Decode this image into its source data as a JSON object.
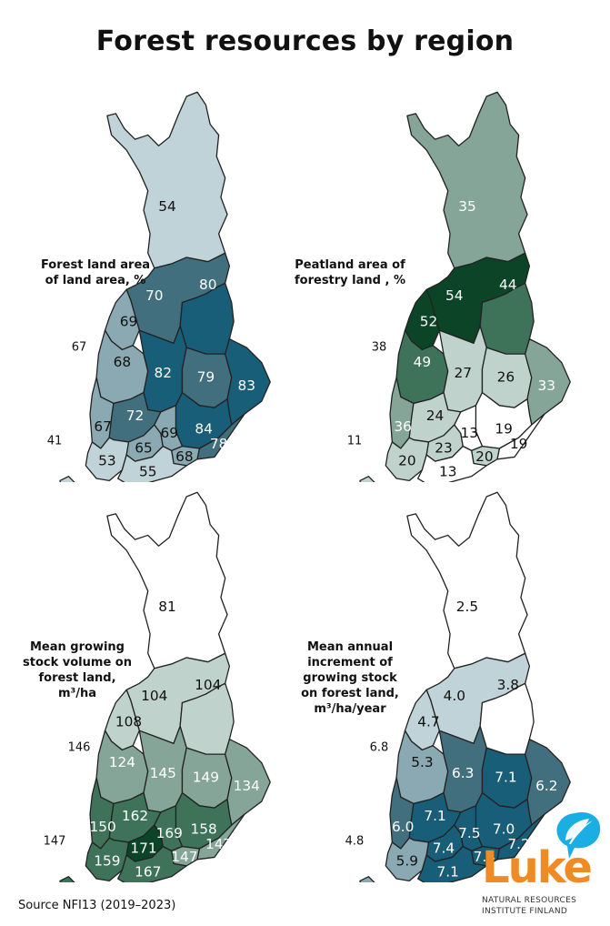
{
  "title": "Forest resources by region",
  "source": "Source NFI13 (2019–2023)",
  "logo": {
    "word": "Luke",
    "line1": "NATURAL RESOURCES",
    "line2": "INSTITUTE FINLAND",
    "leaf_color": "#1aaee2",
    "word_color": "#f08a24"
  },
  "panels": [
    {
      "id": "forest-land",
      "label_lines": [
        "Forest land area",
        "of land area, %"
      ],
      "values": {
        "lapland": "54",
        "north_ostrobothnia": "70",
        "kainuu": "80",
        "central_ostrobothnia": "69",
        "ostrobothnia": "68",
        "central_finland": "82",
        "north_savo": "79",
        "north_karelia": "83",
        "south_ostrobothnia_west": "67",
        "pirkanmaa": "72",
        "south_savo": "84",
        "south_karelia": "78",
        "satakunta_tavastia": "65",
        "paijat_hame": "69",
        "kymenlaakso": "68",
        "southwest": "53",
        "uusimaa": "55"
      },
      "outside": {
        "vaasa_coast": "67",
        "aland": "41"
      },
      "colors": {
        "very_light": "#c0d3d8",
        "light": "#8aa9b3",
        "mid": "#426f7e",
        "dark": "#195e78"
      }
    },
    {
      "id": "peatland",
      "label_lines": [
        "Peatland area of",
        "forestry land , %"
      ],
      "values": {
        "lapland": "35",
        "north_ostrobothnia": "54",
        "kainuu": "44",
        "central_ostrobothnia": "52",
        "ostrobothnia": "49",
        "central_finland": "27",
        "north_savo": "26",
        "north_karelia": "33",
        "south_ostrobothnia_west": "36",
        "pirkanmaa": "24",
        "south_savo": "19",
        "south_karelia": "19",
        "satakunta_tavastia": "23",
        "paijat_hame": "13",
        "kymenlaakso": "20",
        "southwest": "20",
        "uusimaa": "13"
      },
      "outside": {
        "vaasa_coast": "38",
        "aland": "11"
      },
      "colors": {
        "white": "#ffffff",
        "light": "#bfd3cc",
        "mid": "#84a597",
        "dark": "#3e735a",
        "darkest": "#0c4428"
      }
    },
    {
      "id": "growing-stock",
      "label_lines": [
        "Mean growing",
        "stock volume on",
        "forest land,",
        "m³/ha"
      ],
      "values": {
        "lapland": "81",
        "north_ostrobothnia": "104",
        "kainuu": "104",
        "central_ostrobothnia": "108",
        "ostrobothnia": "124",
        "central_finland": "145",
        "north_savo": "149",
        "north_karelia": "134",
        "south_ostrobothnia_west": "150",
        "pirkanmaa": "162",
        "south_savo": "158",
        "south_karelia": "147",
        "satakunta_tavastia": "171",
        "paijat_hame": "169",
        "kymenlaakso": "147",
        "southwest": "159",
        "uusimaa": "167"
      },
      "outside": {
        "vaasa_coast": "146",
        "aland": "147"
      },
      "colors": {
        "white": "#ffffff",
        "light": "#bfd3cc",
        "mid": "#84a597",
        "dark": "#3e735a",
        "darkest": "#0c4428"
      }
    },
    {
      "id": "annual-increment",
      "label_lines": [
        "Mean annual",
        "increment of",
        "growing stock",
        "on forest land,",
        "m³/ha/year"
      ],
      "values": {
        "lapland": "2.5",
        "north_ostrobothnia": "4.0",
        "kainuu": "3.8",
        "central_ostrobothnia": "4.7",
        "ostrobothnia": "5.3",
        "central_finland": "6.3",
        "north_savo": "7.1",
        "north_karelia": "6.2",
        "south_ostrobothnia_west": "6.0",
        "pirkanmaa": "7.1",
        "south_savo": "7.0",
        "south_karelia": "7.2",
        "satakunta_tavastia": "7.4",
        "paijat_hame": "7.5",
        "kymenlaakso": "7.4",
        "southwest": "5.9",
        "uusimaa": "7.1"
      },
      "outside": {
        "vaasa_coast": "6.8",
        "aland": "4.8"
      },
      "colors": {
        "white": "#ffffff",
        "very_light": "#c0d3d8",
        "light": "#8aa9b3",
        "mid": "#426f7e",
        "dark": "#195e78"
      }
    }
  ]
}
